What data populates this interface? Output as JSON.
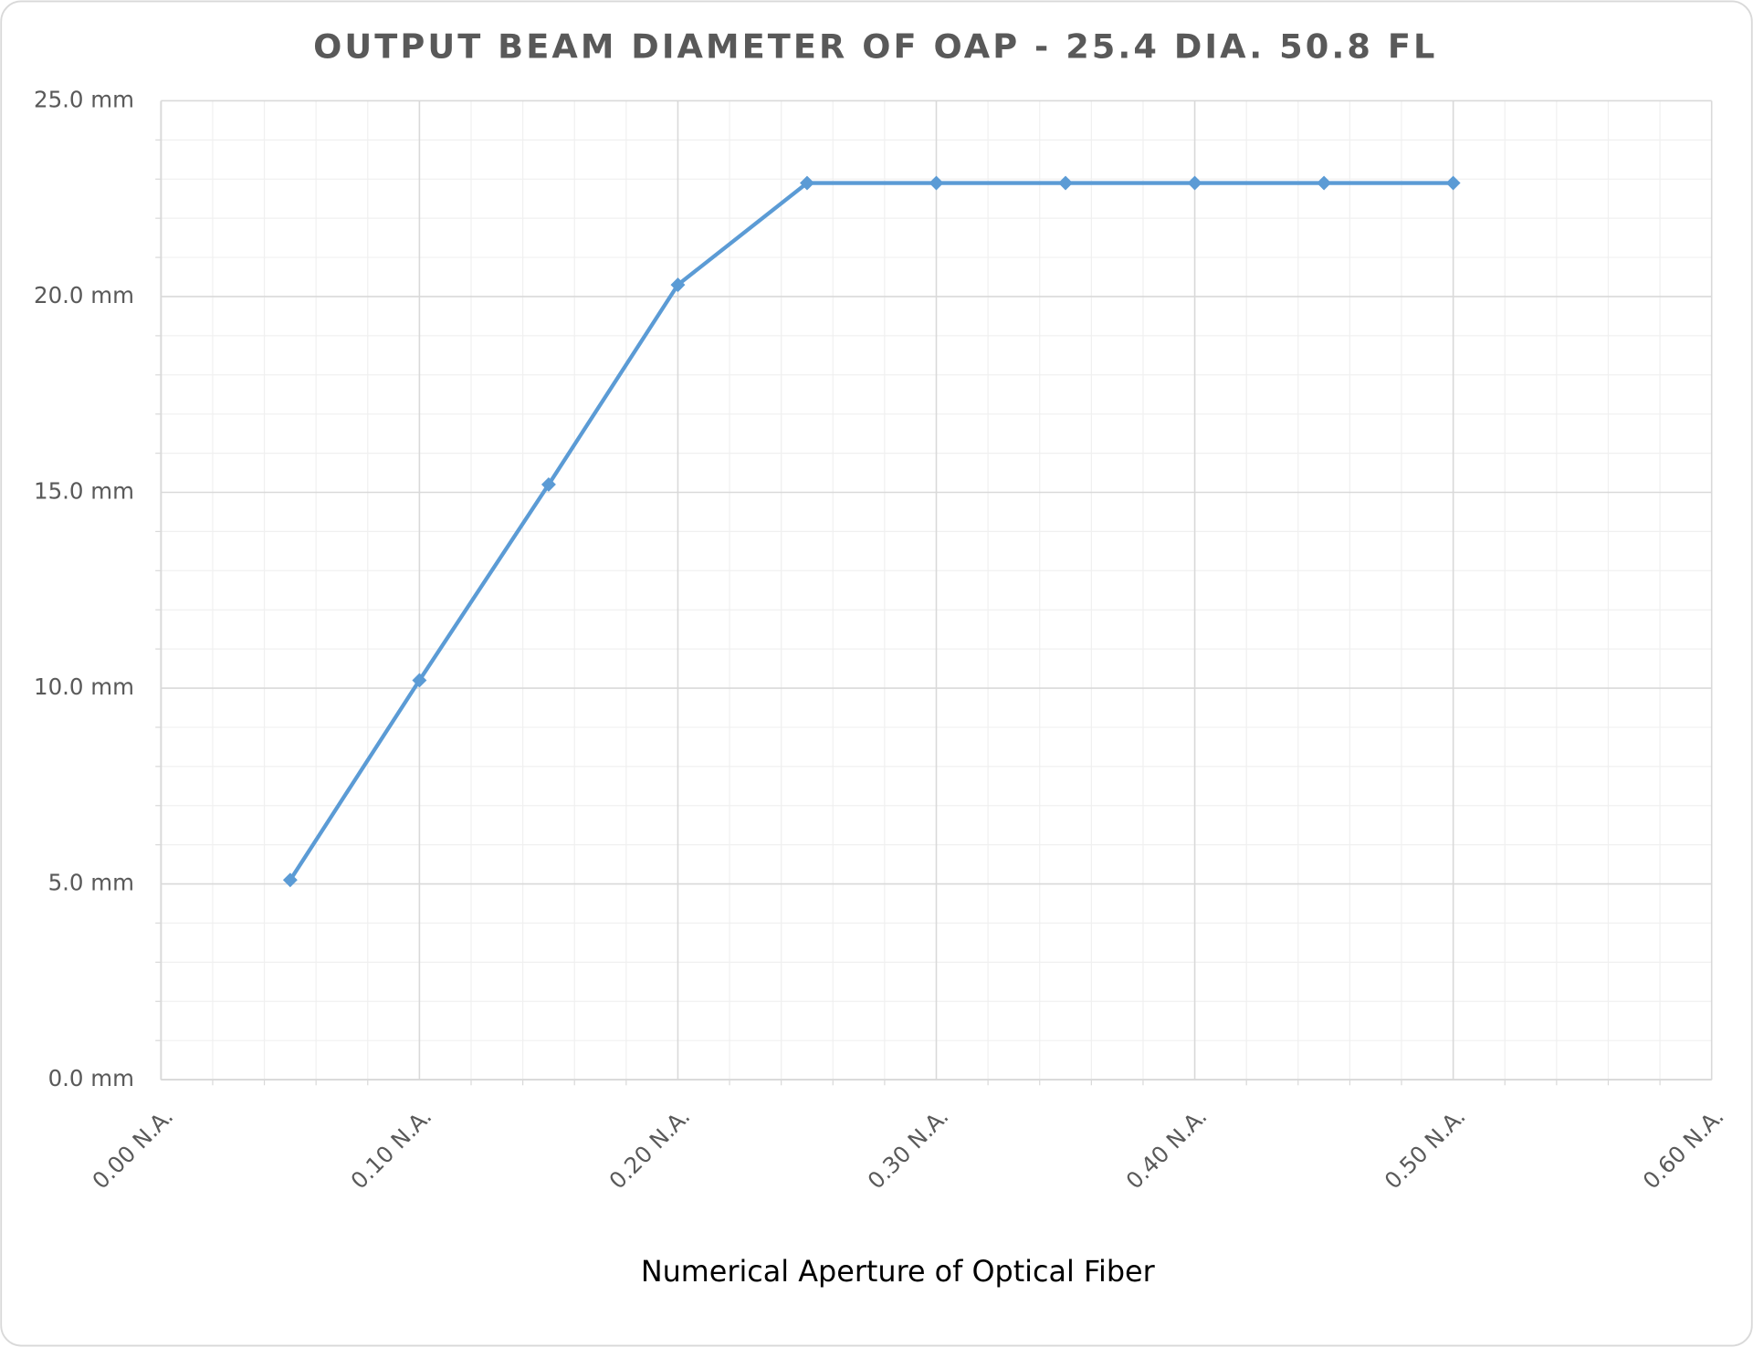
{
  "chart_data": {
    "type": "line",
    "title": "OUTPUT BEAM DIAMETER OF OAP - 25.4 DIA. 50.8 FL",
    "x_label": "Numerical Aperture of Optical Fiber",
    "x": [
      0.05,
      0.1,
      0.15,
      0.2,
      0.25,
      0.3,
      0.35,
      0.4,
      0.45,
      0.5
    ],
    "values": [
      5.1,
      10.2,
      15.2,
      20.3,
      22.9,
      22.9,
      22.9,
      22.9,
      22.9,
      22.9
    ],
    "color": "#5b9bd5",
    "marker": "diamond",
    "xlim": [
      0,
      0.6
    ],
    "xticks": [
      {
        "value": 0,
        "label": "0.00 N.A."
      },
      {
        "value": 0.1,
        "label": "0.10 N.A."
      },
      {
        "value": 0.2,
        "label": "0.20 N.A."
      },
      {
        "value": 0.3,
        "label": "0.30 N.A."
      },
      {
        "value": 0.4,
        "label": "0.40 N.A."
      },
      {
        "value": 0.5,
        "label": "0.50 N.A."
      },
      {
        "value": 0.6,
        "label": "0.60 N.A."
      }
    ],
    "ylim": [
      0,
      25
    ],
    "yticks": [
      {
        "value": 0,
        "label": "0.0 mm"
      },
      {
        "value": 5,
        "label": "5.0 mm"
      },
      {
        "value": 10,
        "label": "10.0 mm"
      },
      {
        "value": 15,
        "label": "15.0 mm"
      },
      {
        "value": 20,
        "label": "20.0 mm"
      },
      {
        "value": 25,
        "label": "25.0 mm"
      }
    ],
    "grid": true,
    "minor_grid": true
  }
}
